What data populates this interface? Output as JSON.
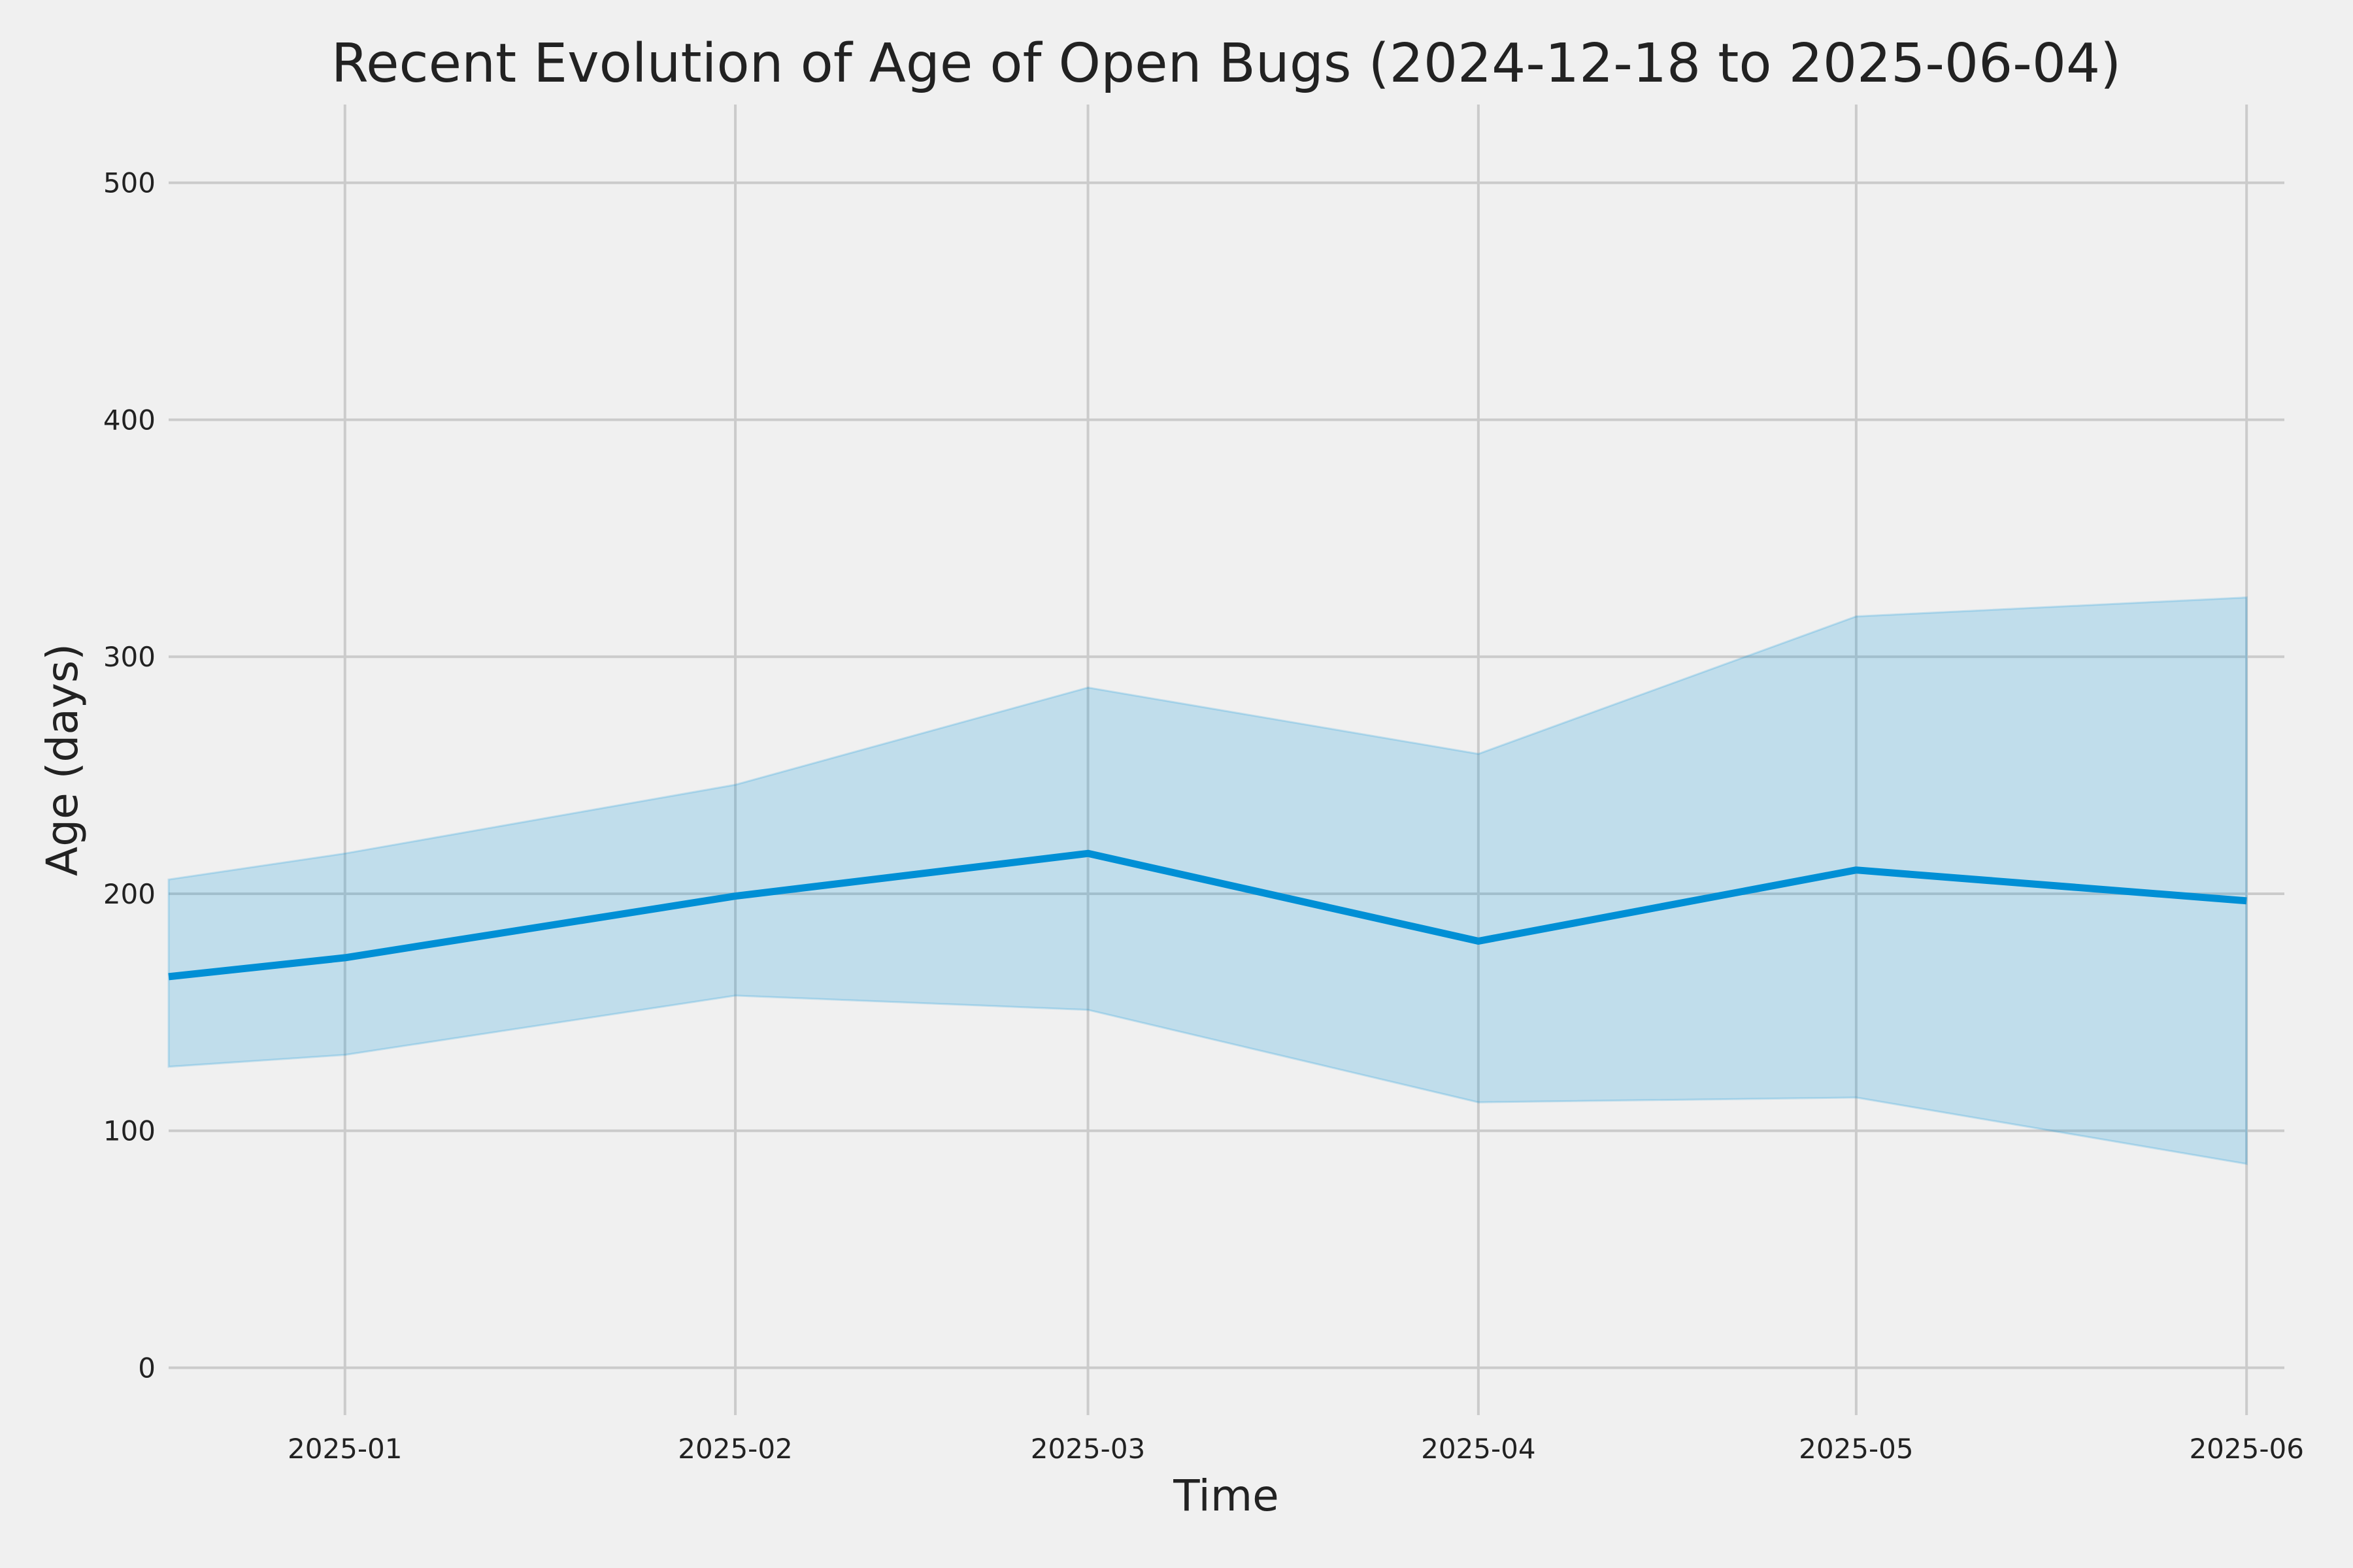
{
  "chart_data": {
    "type": "area",
    "title": "Recent Evolution of Age of Open Bugs (2024-12-18 to 2025-06-04)",
    "xlabel": "Time",
    "ylabel": "Age (days)",
    "xlim": [
      "2024-12-18",
      "2025-06-04"
    ],
    "ylim": [
      -20,
      533
    ],
    "x_ticks": [
      "2025-01",
      "2025-02",
      "2025-03",
      "2025-04",
      "2025-05",
      "2025-06"
    ],
    "y_ticks": [
      0,
      100,
      200,
      300,
      400,
      500
    ],
    "grid": true,
    "x": [
      "2024-12-18",
      "2025-01-01",
      "2025-02-01",
      "2025-03-01",
      "2025-04-01",
      "2025-05-01",
      "2025-06-01"
    ],
    "series": [
      {
        "values": [
          165,
          173,
          199,
          217,
          180,
          210,
          197
        ],
        "color": "#008fd5"
      }
    ],
    "band": {
      "upper": [
        206,
        217,
        246,
        287,
        259,
        317,
        325
      ],
      "lower": [
        127,
        132,
        157,
        151,
        112,
        114,
        86
      ],
      "color": "#008fd5",
      "opacity": 0.2
    }
  }
}
